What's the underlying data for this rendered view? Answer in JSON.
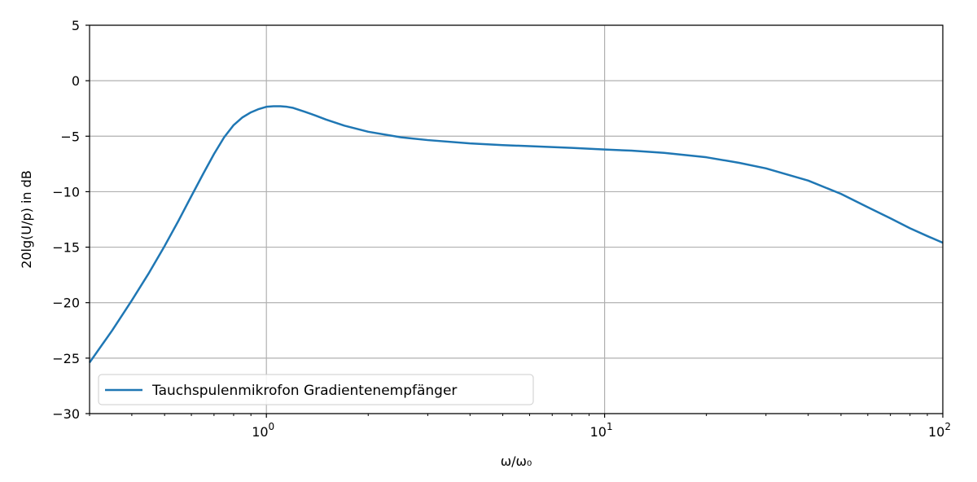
{
  "chart_data": {
    "type": "line",
    "x_scale": "log",
    "xlim": [
      0.3,
      100
    ],
    "ylim": [
      -30,
      5
    ],
    "grid": true,
    "legend_position": "lower-left",
    "xlabel": "ω/ω₀",
    "ylabel": "20lg(U/p) in dB",
    "x_ticks": [
      {
        "value": 1,
        "base": "10",
        "exp": "0"
      },
      {
        "value": 10,
        "base": "10",
        "exp": "1"
      },
      {
        "value": 100,
        "base": "10",
        "exp": "2"
      }
    ],
    "y_ticks": [
      5,
      0,
      -5,
      -10,
      -15,
      -20,
      -25,
      -30
    ],
    "y_tick_labels": [
      "5",
      "0",
      "−5",
      "−10",
      "−15",
      "−20",
      "−25",
      "−30"
    ],
    "series": [
      {
        "name": "Tauchspulenmikrofon Gradientenempfänger",
        "color": "#1f77b4",
        "x": [
          0.3,
          0.35,
          0.4,
          0.45,
          0.5,
          0.55,
          0.6,
          0.65,
          0.7,
          0.75,
          0.8,
          0.85,
          0.9,
          0.95,
          1.0,
          1.05,
          1.1,
          1.15,
          1.2,
          1.3,
          1.4,
          1.5,
          1.7,
          2.0,
          2.5,
          3.0,
          4.0,
          5.0,
          6.0,
          8.0,
          10,
          12,
          15,
          20,
          25,
          30,
          40,
          50,
          60,
          70,
          80,
          90,
          100
        ],
        "y": [
          -25.4,
          -22.5,
          -19.8,
          -17.3,
          -14.9,
          -12.6,
          -10.4,
          -8.4,
          -6.6,
          -5.1,
          -4.0,
          -3.3,
          -2.85,
          -2.55,
          -2.35,
          -2.3,
          -2.3,
          -2.35,
          -2.45,
          -2.8,
          -3.15,
          -3.5,
          -4.05,
          -4.6,
          -5.1,
          -5.35,
          -5.65,
          -5.8,
          -5.9,
          -6.05,
          -6.2,
          -6.3,
          -6.5,
          -6.9,
          -7.4,
          -7.9,
          -9.0,
          -10.2,
          -11.4,
          -12.4,
          -13.3,
          -14.0,
          -14.6
        ]
      }
    ]
  }
}
